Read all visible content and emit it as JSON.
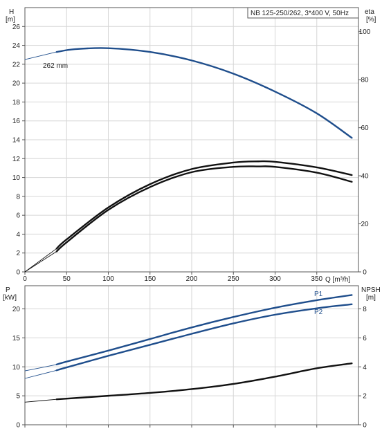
{
  "chart_data": [
    {
      "type": "line",
      "title": "NB 125-250/262, 3*400 V, 50Hz",
      "xlabel": "Q [m³/h]",
      "ylabel_left_name": "H",
      "ylabel_left_unit": "[m]",
      "ylabel_right_name": "eta",
      "ylabel_right_unit": "[%]",
      "xlim": [
        0,
        400
      ],
      "ylim_left": [
        0,
        28
      ],
      "ylim_right": [
        0,
        110
      ],
      "x_ticks": [
        0,
        50,
        100,
        150,
        200,
        250,
        300,
        350
      ],
      "y_ticks_left": [
        0,
        2,
        4,
        6,
        8,
        10,
        12,
        14,
        16,
        18,
        20,
        22,
        24,
        26
      ],
      "y_ticks_right": [
        0,
        20,
        40,
        60,
        80,
        100
      ],
      "grid": true,
      "annotation": "262 mm",
      "series": [
        {
          "id": "head",
          "axis": "left",
          "color": "#1f4e8c",
          "x": [
            0,
            38,
            60,
            100,
            150,
            200,
            250,
            300,
            350,
            392
          ],
          "values": [
            22.5,
            23.3,
            23.6,
            23.7,
            23.3,
            22.4,
            21.0,
            19.1,
            16.8,
            14.2
          ],
          "thin_until": 38
        },
        {
          "id": "eta-upper",
          "axis": "right",
          "color": "#111111",
          "x": [
            0,
            38,
            50,
            100,
            150,
            200,
            250,
            280,
            300,
            350,
            392
          ],
          "values": [
            0,
            9.7,
            13.5,
            26.8,
            36.5,
            42.8,
            45.5,
            46.0,
            45.8,
            43.5,
            40.3
          ],
          "thin_until": 38
        },
        {
          "id": "eta-lower",
          "axis": "right",
          "color": "#111111",
          "x": [
            0,
            38,
            50,
            100,
            150,
            200,
            250,
            280,
            300,
            350,
            392
          ],
          "values": [
            0,
            8.5,
            12.3,
            25.8,
            35.3,
            41.5,
            43.7,
            43.9,
            43.7,
            41.3,
            37.5
          ],
          "thin_until": 38
        }
      ]
    },
    {
      "type": "line",
      "xlim": [
        0,
        400
      ],
      "ylim_left": [
        0,
        24
      ],
      "ylim_right": [
        0,
        9.6
      ],
      "ylabel_left_name": "P",
      "ylabel_left_unit": "[kW]",
      "ylabel_right_name": "NPSH",
      "ylabel_right_unit": "[m]",
      "y_ticks_left": [
        0,
        5,
        10,
        15,
        20
      ],
      "y_ticks_right": [
        0,
        2,
        4,
        6,
        8
      ],
      "grid": true,
      "series": [
        {
          "id": "p1",
          "name": "P1",
          "axis": "left",
          "color": "#1f4e8c",
          "x": [
            0,
            38,
            50,
            100,
            150,
            200,
            250,
            300,
            350,
            392
          ],
          "values": [
            9.3,
            10.4,
            10.9,
            12.8,
            14.8,
            16.8,
            18.6,
            20.2,
            21.5,
            22.4
          ],
          "thin_until": 38
        },
        {
          "id": "p2",
          "name": "P2",
          "axis": "left",
          "color": "#1f4e8c",
          "x": [
            0,
            38,
            50,
            100,
            150,
            200,
            250,
            300,
            350,
            392
          ],
          "values": [
            8.0,
            9.4,
            9.9,
            11.9,
            13.8,
            15.7,
            17.5,
            19.0,
            20.1,
            20.8
          ],
          "thin_until": 38
        },
        {
          "id": "npsh",
          "axis": "right",
          "color": "#111111",
          "x": [
            0,
            38,
            100,
            150,
            200,
            250,
            300,
            350,
            392
          ],
          "values": [
            1.56,
            1.76,
            2.0,
            2.2,
            2.46,
            2.82,
            3.32,
            3.9,
            4.24
          ],
          "thin_until": 38
        }
      ]
    }
  ]
}
